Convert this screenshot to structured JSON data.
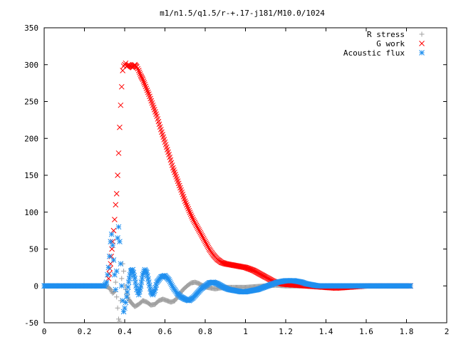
{
  "chart_data": {
    "type": "scatter",
    "title": "m1/n1.5/q1.5/r-+.17-j181/M10.0/1024",
    "xlabel": "",
    "ylabel": "",
    "xlim": [
      0,
      2
    ],
    "ylim": [
      -50,
      350
    ],
    "x_ticks": [
      "0",
      "0.2",
      "0.4",
      "0.6",
      "0.8",
      "1",
      "1.2",
      "1.4",
      "1.6",
      "1.8",
      "2"
    ],
    "y_ticks": [
      "-50",
      "0",
      "50",
      "100",
      "150",
      "200",
      "250",
      "300",
      "350"
    ],
    "x_tick_values": [
      0,
      0.2,
      0.4,
      0.6,
      0.8,
      1.0,
      1.2,
      1.4,
      1.6,
      1.8,
      2.0
    ],
    "y_tick_values": [
      -50,
      0,
      50,
      100,
      150,
      200,
      250,
      300,
      350
    ],
    "grid": false,
    "legend_position": "top-right",
    "series": [
      {
        "name": "R stress",
        "marker": "plus",
        "color": "#a0a0a0",
        "points": [
          [
            0.0,
            0
          ],
          [
            0.05,
            0
          ],
          [
            0.1,
            0
          ],
          [
            0.15,
            0
          ],
          [
            0.2,
            0
          ],
          [
            0.25,
            0
          ],
          [
            0.3,
            0
          ],
          [
            0.32,
            -2
          ],
          [
            0.33,
            -5
          ],
          [
            0.34,
            -10
          ],
          [
            0.35,
            -8
          ],
          [
            0.355,
            5
          ],
          [
            0.36,
            -15
          ],
          [
            0.365,
            -30
          ],
          [
            0.37,
            -45
          ],
          [
            0.375,
            -48
          ],
          [
            0.38,
            -20
          ],
          [
            0.385,
            10
          ],
          [
            0.39,
            30
          ],
          [
            0.395,
            20
          ],
          [
            0.4,
            0
          ],
          [
            0.41,
            -10
          ],
          [
            0.42,
            -18
          ],
          [
            0.43,
            -22
          ],
          [
            0.44,
            -25
          ],
          [
            0.45,
            -28
          ],
          [
            0.47,
            -25
          ],
          [
            0.49,
            -20
          ],
          [
            0.51,
            -22
          ],
          [
            0.53,
            -26
          ],
          [
            0.55,
            -25
          ],
          [
            0.57,
            -20
          ],
          [
            0.59,
            -18
          ],
          [
            0.61,
            -20
          ],
          [
            0.63,
            -22
          ],
          [
            0.65,
            -20
          ],
          [
            0.67,
            -12
          ],
          [
            0.69,
            -5
          ],
          [
            0.71,
            0
          ],
          [
            0.73,
            4
          ],
          [
            0.75,
            5
          ],
          [
            0.77,
            3
          ],
          [
            0.79,
            0
          ],
          [
            0.81,
            -2
          ],
          [
            0.83,
            -3
          ],
          [
            0.85,
            -4
          ],
          [
            0.87,
            -3
          ],
          [
            0.9,
            -2
          ],
          [
            0.95,
            -2
          ],
          [
            1.0,
            -2
          ],
          [
            1.05,
            -1
          ],
          [
            1.1,
            0
          ],
          [
            1.15,
            1
          ],
          [
            1.2,
            0
          ],
          [
            1.25,
            0
          ],
          [
            1.3,
            0
          ],
          [
            1.4,
            0
          ],
          [
            1.5,
            0
          ],
          [
            1.6,
            0
          ],
          [
            1.7,
            0
          ],
          [
            1.8,
            0
          ],
          [
            1.82,
            0
          ]
        ]
      },
      {
        "name": "G work",
        "marker": "cross",
        "color": "#ff0000",
        "points": [
          [
            0.32,
            10
          ],
          [
            0.33,
            30
          ],
          [
            0.34,
            60
          ],
          [
            0.35,
            90
          ],
          [
            0.355,
            110
          ],
          [
            0.36,
            125
          ],
          [
            0.365,
            150
          ],
          [
            0.37,
            180
          ],
          [
            0.375,
            215
          ],
          [
            0.38,
            245
          ],
          [
            0.385,
            270
          ],
          [
            0.39,
            292
          ],
          [
            0.395,
            298
          ],
          [
            0.4,
            300
          ],
          [
            0.405,
            302
          ],
          [
            0.41,
            298
          ],
          [
            0.42,
            300
          ],
          [
            0.43,
            298
          ],
          [
            0.44,
            296
          ],
          [
            0.45,
            300
          ],
          [
            0.46,
            297
          ],
          [
            0.47,
            292
          ],
          [
            0.48,
            285
          ],
          [
            0.49,
            280
          ],
          [
            0.5,
            273
          ],
          [
            0.52,
            260
          ],
          [
            0.54,
            245
          ],
          [
            0.56,
            230
          ],
          [
            0.58,
            212
          ],
          [
            0.6,
            195
          ],
          [
            0.62,
            178
          ],
          [
            0.64,
            160
          ],
          [
            0.66,
            145
          ],
          [
            0.68,
            130
          ],
          [
            0.7,
            115
          ],
          [
            0.72,
            102
          ],
          [
            0.74,
            90
          ],
          [
            0.76,
            80
          ],
          [
            0.78,
            70
          ],
          [
            0.8,
            60
          ],
          [
            0.82,
            50
          ],
          [
            0.84,
            42
          ],
          [
            0.86,
            36
          ],
          [
            0.88,
            32
          ],
          [
            0.9,
            30
          ],
          [
            0.92,
            29
          ],
          [
            0.94,
            28
          ],
          [
            0.96,
            27
          ],
          [
            0.98,
            26
          ],
          [
            1.0,
            25
          ],
          [
            1.02,
            23
          ],
          [
            1.04,
            21
          ],
          [
            1.06,
            18
          ],
          [
            1.08,
            15
          ],
          [
            1.1,
            12
          ],
          [
            1.12,
            9
          ],
          [
            1.14,
            6
          ],
          [
            1.16,
            4
          ],
          [
            1.18,
            3
          ],
          [
            1.2,
            2
          ],
          [
            1.25,
            1
          ],
          [
            1.3,
            0
          ],
          [
            1.35,
            -1
          ],
          [
            1.4,
            -2
          ],
          [
            1.45,
            -3
          ],
          [
            1.5,
            -2
          ],
          [
            1.55,
            -1
          ],
          [
            1.6,
            0
          ],
          [
            1.65,
            0
          ],
          [
            1.7,
            0
          ],
          [
            1.75,
            0
          ],
          [
            1.8,
            0
          ],
          [
            1.82,
            0
          ]
        ]
      },
      {
        "name": "Acoustic flux",
        "marker": "star",
        "color": "#1f8fef",
        "points": [
          [
            0.0,
            0
          ],
          [
            0.05,
            0
          ],
          [
            0.1,
            0
          ],
          [
            0.15,
            0
          ],
          [
            0.2,
            0
          ],
          [
            0.25,
            0
          ],
          [
            0.3,
            0
          ],
          [
            0.31,
            5
          ],
          [
            0.315,
            15
          ],
          [
            0.32,
            25
          ],
          [
            0.325,
            40
          ],
          [
            0.33,
            60
          ],
          [
            0.335,
            70
          ],
          [
            0.34,
            55
          ],
          [
            0.345,
            35
          ],
          [
            0.35,
            15
          ],
          [
            0.355,
            -5
          ],
          [
            0.36,
            20
          ],
          [
            0.365,
            65
          ],
          [
            0.37,
            80
          ],
          [
            0.375,
            60
          ],
          [
            0.38,
            30
          ],
          [
            0.385,
            0
          ],
          [
            0.39,
            -20
          ],
          [
            0.395,
            -35
          ],
          [
            0.4,
            -30
          ],
          [
            0.41,
            -15
          ],
          [
            0.42,
            5
          ],
          [
            0.43,
            20
          ],
          [
            0.44,
            22
          ],
          [
            0.45,
            10
          ],
          [
            0.46,
            -5
          ],
          [
            0.47,
            -12
          ],
          [
            0.48,
            0
          ],
          [
            0.49,
            15
          ],
          [
            0.5,
            22
          ],
          [
            0.51,
            18
          ],
          [
            0.52,
            5
          ],
          [
            0.53,
            -8
          ],
          [
            0.54,
            -12
          ],
          [
            0.55,
            -6
          ],
          [
            0.56,
            5
          ],
          [
            0.58,
            12
          ],
          [
            0.6,
            14
          ],
          [
            0.62,
            8
          ],
          [
            0.64,
            -2
          ],
          [
            0.66,
            -10
          ],
          [
            0.68,
            -15
          ],
          [
            0.7,
            -18
          ],
          [
            0.72,
            -20
          ],
          [
            0.74,
            -16
          ],
          [
            0.76,
            -10
          ],
          [
            0.78,
            -4
          ],
          [
            0.8,
            0
          ],
          [
            0.82,
            4
          ],
          [
            0.84,
            5
          ],
          [
            0.86,
            3
          ],
          [
            0.88,
            0
          ],
          [
            0.9,
            -3
          ],
          [
            0.92,
            -5
          ],
          [
            0.94,
            -6
          ],
          [
            0.96,
            -7
          ],
          [
            0.98,
            -8
          ],
          [
            1.0,
            -8
          ],
          [
            1.02,
            -7
          ],
          [
            1.04,
            -6
          ],
          [
            1.06,
            -5
          ],
          [
            1.08,
            -3
          ],
          [
            1.1,
            -1
          ],
          [
            1.12,
            1
          ],
          [
            1.14,
            3
          ],
          [
            1.16,
            5
          ],
          [
            1.18,
            6
          ],
          [
            1.2,
            7
          ],
          [
            1.22,
            7
          ],
          [
            1.24,
            7
          ],
          [
            1.26,
            6
          ],
          [
            1.28,
            5
          ],
          [
            1.3,
            3
          ],
          [
            1.32,
            2
          ],
          [
            1.34,
            1
          ],
          [
            1.36,
            0
          ],
          [
            1.4,
            0
          ],
          [
            1.5,
            0
          ],
          [
            1.6,
            0
          ],
          [
            1.7,
            0
          ],
          [
            1.8,
            0
          ],
          [
            1.82,
            0
          ]
        ]
      }
    ]
  }
}
